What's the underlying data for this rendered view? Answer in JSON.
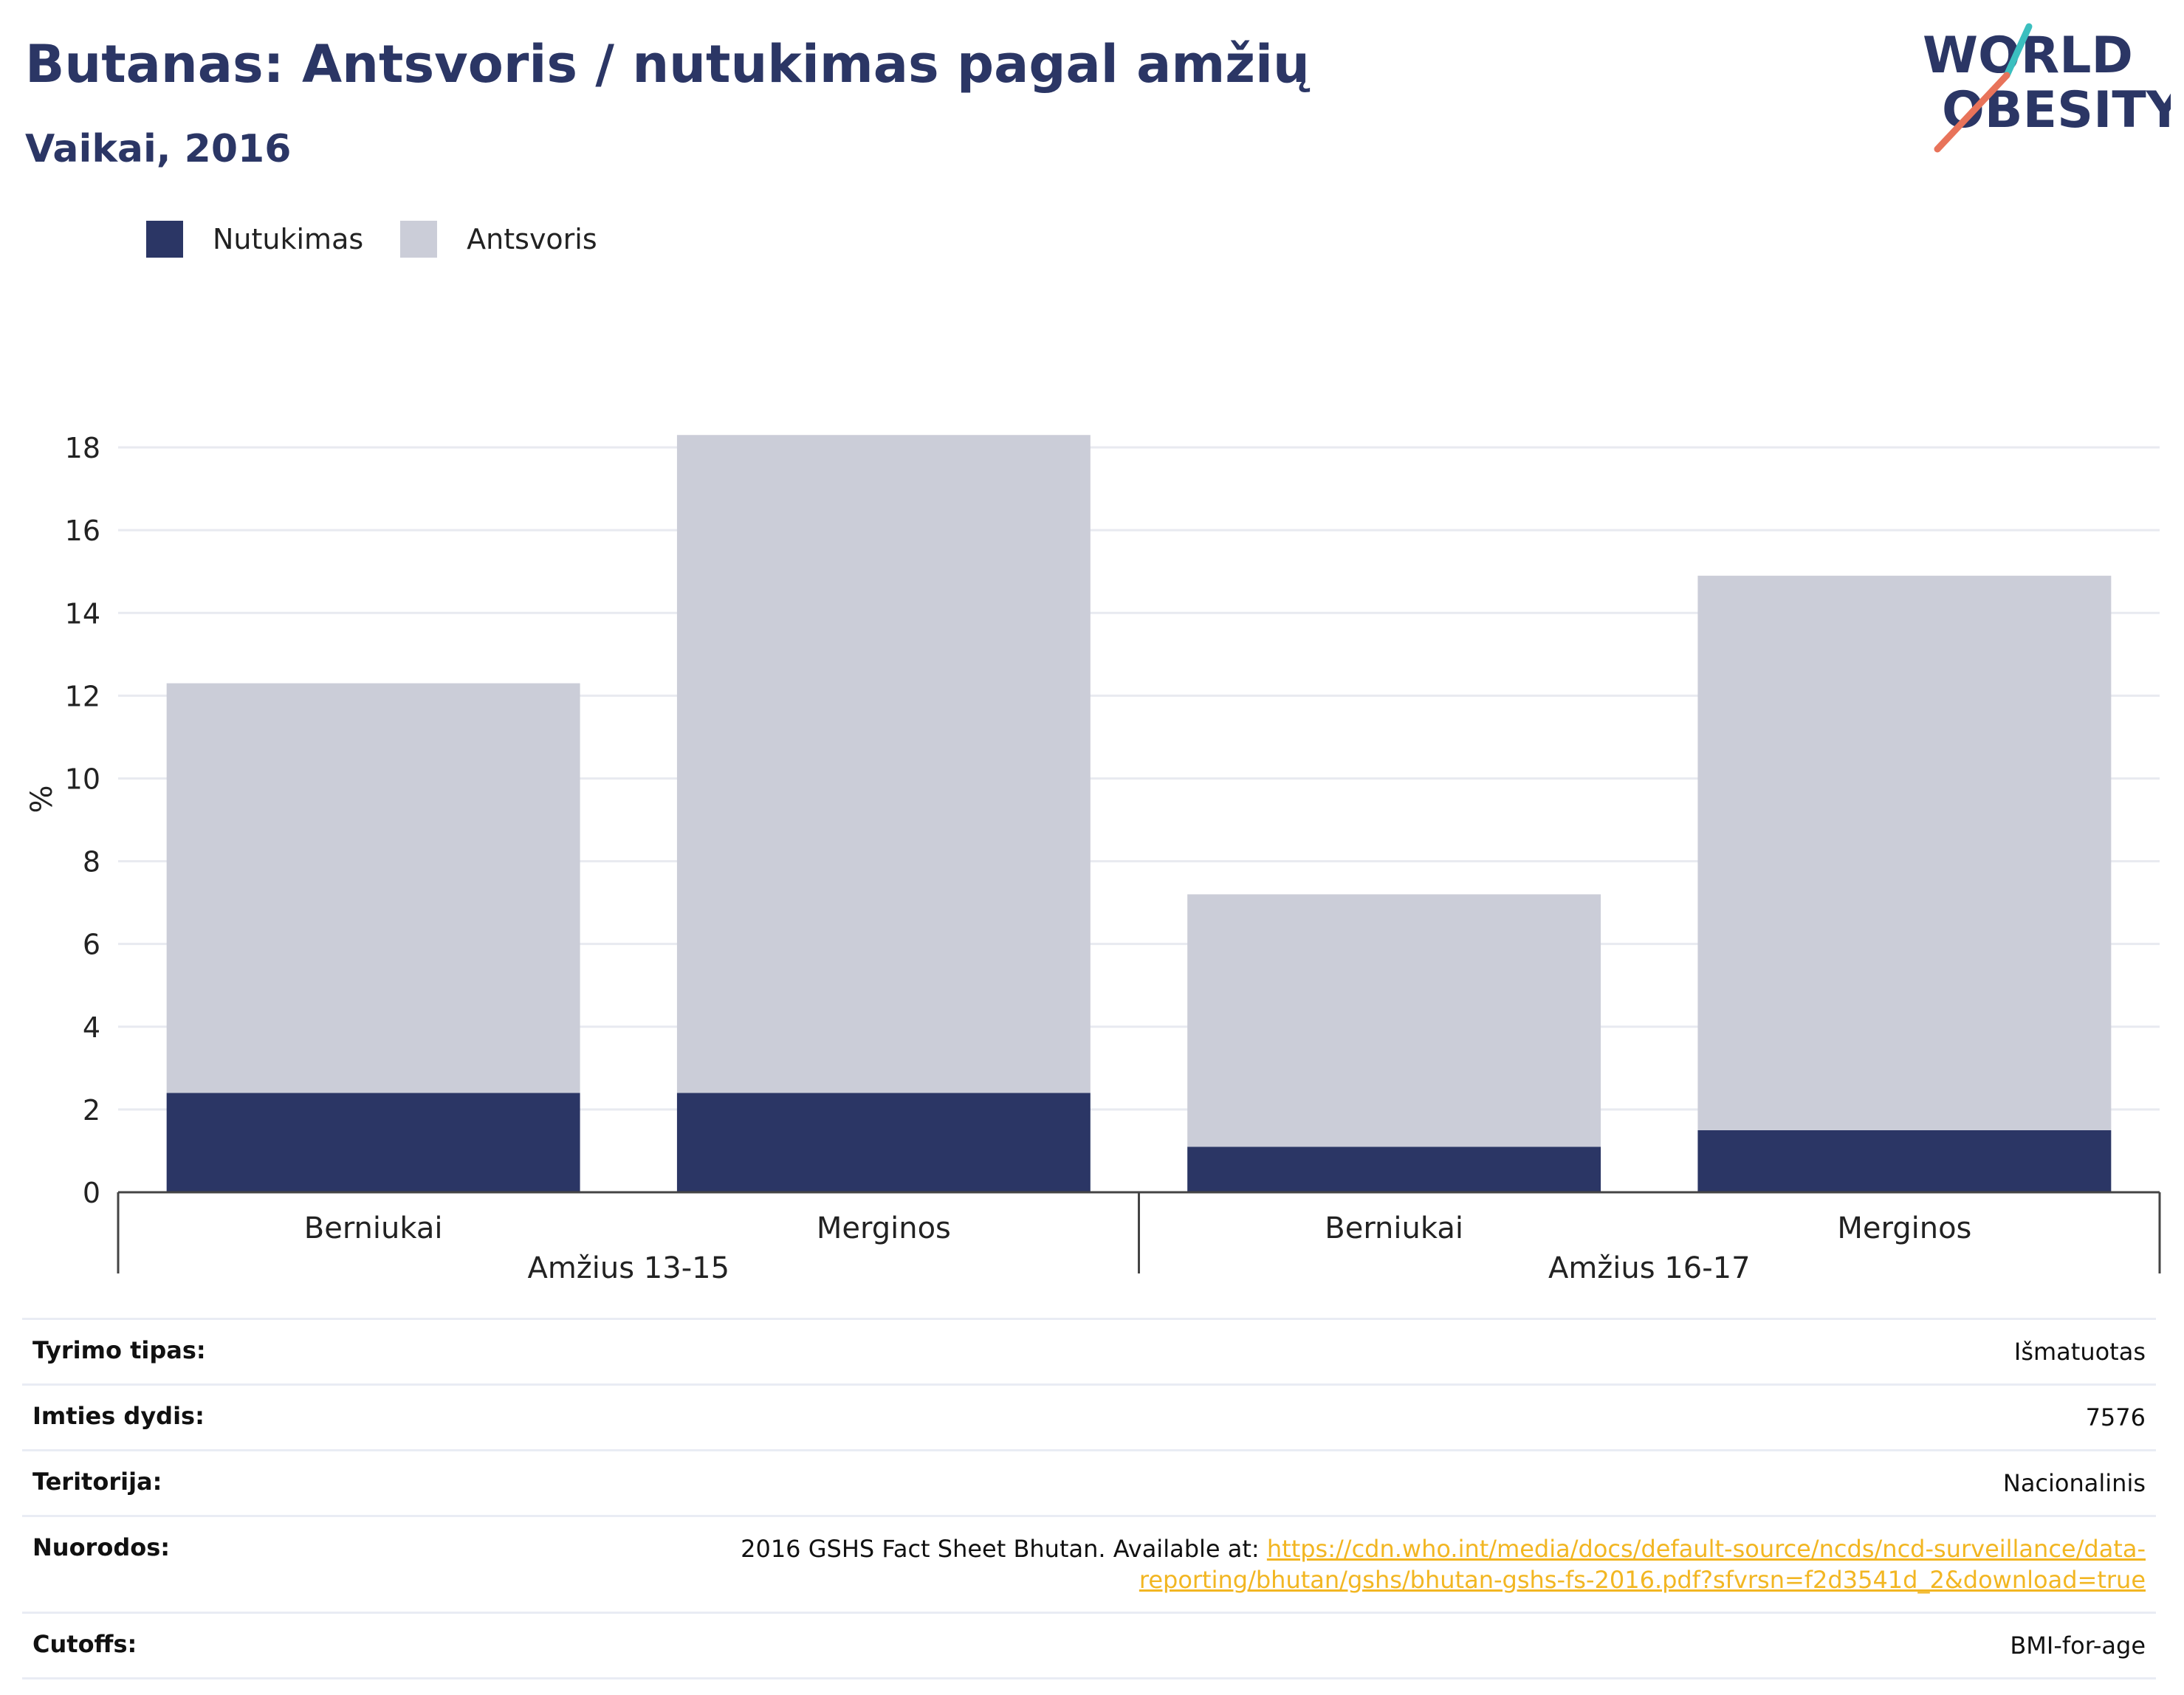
{
  "header": {
    "title": "Butanas: Antsvoris / nutukimas pagal amžių",
    "subtitle": "Vaikai, 2016"
  },
  "logo": {
    "line1": "WORLD",
    "line2": "OBESITY"
  },
  "legend": {
    "items": [
      {
        "label": "Nutukimas",
        "color": "#2b3665"
      },
      {
        "label": "Antsvoris",
        "color": "#cbcdd8"
      }
    ]
  },
  "chart_data": {
    "type": "bar",
    "stacked": true,
    "ylabel": "%",
    "ylim": [
      0,
      19
    ],
    "yticks": [
      0,
      2,
      4,
      6,
      8,
      10,
      12,
      14,
      16,
      18
    ],
    "grid": true,
    "legend_position": "top-left",
    "groups": [
      {
        "label": "Amžius 13-15",
        "categories": [
          "Berniukai",
          "Merginos"
        ]
      },
      {
        "label": "Amžius 16-17",
        "categories": [
          "Berniukai",
          "Merginos"
        ]
      }
    ],
    "series": [
      {
        "name": "Nutukimas",
        "color": "#2b3665",
        "values": [
          2.4,
          2.4,
          1.1,
          1.5
        ]
      },
      {
        "name": "Antsvoris",
        "color": "#cbcdd8",
        "values": [
          9.9,
          15.9,
          6.1,
          13.4
        ]
      }
    ]
  },
  "info": {
    "rows": [
      {
        "key": "Tyrimo tipas:",
        "value": "Išmatuotas"
      },
      {
        "key": "Imties dydis:",
        "value": "7576"
      },
      {
        "key": "Teritorija:",
        "value": "Nacionalinis"
      },
      {
        "key": "Nuorodos:",
        "value": "2016 GSHS Fact Sheet Bhutan. Available at: ",
        "link": "https://cdn.who.int/media/docs/default-source/ncds/ncd-surveillance/data-reporting/bhutan/gshs/bhutan-gshs-fs-2016.pdf?sfvrsn=f2d3541d_2&download=true"
      },
      {
        "key": "Cutoffs:",
        "value": "BMI-for-age"
      }
    ]
  }
}
